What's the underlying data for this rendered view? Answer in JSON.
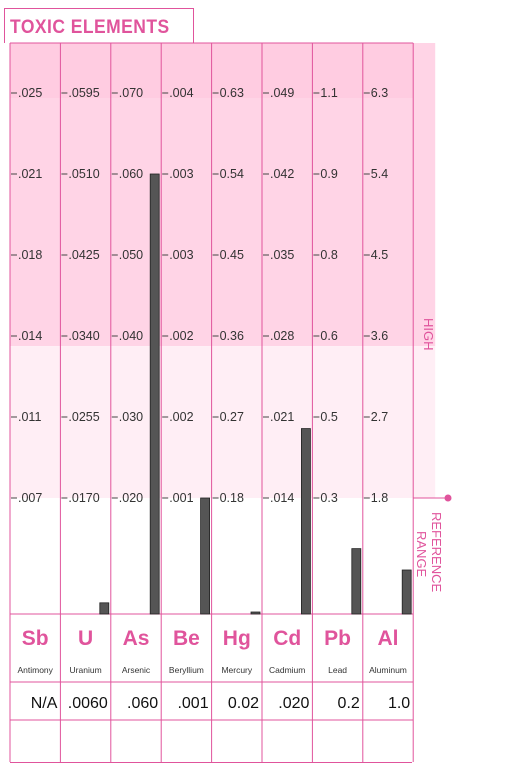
{
  "title": "TOXIC ELEMENTS",
  "band_labels": {
    "high": "HIGH",
    "reference_line1": "REFERENCE",
    "reference_line2": "RANGE"
  },
  "colors": {
    "accent": "#e0549c",
    "high_band": "#ffd4e6",
    "mid_band": "#ffeef5",
    "bar": "#555555"
  },
  "chart_data": {
    "type": "bar",
    "title": "TOXIC ELEMENTS",
    "categories": [
      "Sb",
      "U",
      "As",
      "Be",
      "Hg",
      "Cd",
      "Pb",
      "Al"
    ],
    "element_names": [
      "Antimony",
      "Uranium",
      "Arsenic",
      "Beryllium",
      "Mercury",
      "Cadmium",
      "Lead",
      "Aluminum"
    ],
    "result_labels": [
      "N/A",
      ".0060",
      ".060",
      ".001",
      "0.02",
      ".020",
      "0.2",
      "1.0"
    ],
    "values": [
      null,
      0.006,
      0.06,
      0.001,
      0.02,
      0.02,
      0.2,
      1.0
    ],
    "reference_line_level": 0.3,
    "high_threshold_level": 0.6,
    "ticks": [
      [
        ".025",
        ".021",
        ".018",
        ".014",
        ".011",
        ".007"
      ],
      [
        ".0595",
        ".0510",
        ".0425",
        ".0340",
        ".0255",
        ".0170"
      ],
      [
        ".070",
        ".060",
        ".050",
        ".040",
        ".030",
        ".020"
      ],
      [
        ".004",
        ".003",
        ".003",
        ".002",
        ".002",
        ".001"
      ],
      [
        "0.63",
        "0.54",
        "0.45",
        "0.36",
        "0.27",
        "0.18"
      ],
      [
        ".049",
        ".042",
        ".035",
        ".028",
        ".021",
        ".014"
      ],
      [
        "1.1",
        "0.9",
        "0.8",
        "0.6",
        "0.5",
        "0.3"
      ],
      [
        "6.3",
        "5.4",
        "4.5",
        "3.6",
        "2.7",
        "1.8"
      ]
    ]
  }
}
